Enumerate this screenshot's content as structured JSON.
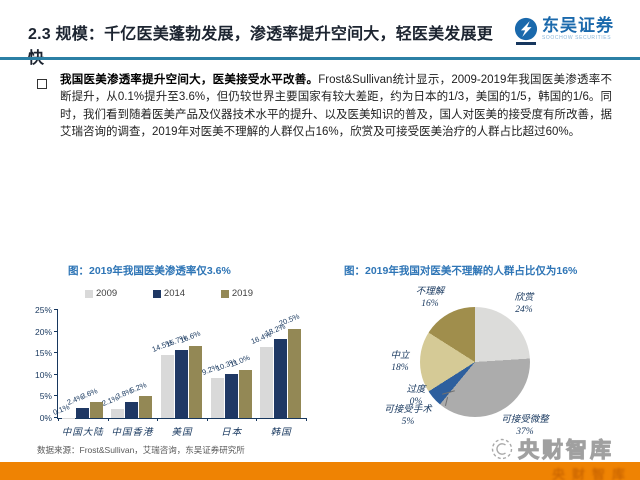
{
  "colors": {
    "accent_blue": "#2e75b6",
    "header_navy": "#1c2430",
    "divider_teal": "#2b80a5",
    "orange_bar": "#ef8303",
    "source_gray": "#595959"
  },
  "header": {
    "title": "2.3 规模：千亿医美蓬勃发展，渗透率提升空间大，轻医美发展更快",
    "brand_name": "东吴证券",
    "brand_sub": "SOOCHOW SECURITIES",
    "brand_icon": "soochow-circle-bolt"
  },
  "body": {
    "lead": "我国医美渗透率提升空间大，医美接受水平改善。",
    "text": "Frost&Sullivan统计显示，2009-2019年我国医美渗透率不断提升，从0.1%提升至3.6%，但仍较世界主要国家有较大差距，约为日本的1/3，美国的1/5，韩国的1/6。同时，我们看到随着医美产品及仪器技术水平的提升、以及医美知识的普及，国人对医美的接受度有所改善，据艾瑞咨询的调查，2019年对医美不理解的人群仅占16%，欣赏及可接受医美治疗的人群占比超过60%。"
  },
  "chart_data": [
    {
      "type": "bar",
      "title": "图：2019年我国医美渗透率仅3.6%",
      "categories": [
        "中国大陆",
        "中国香港",
        "美国",
        "日本",
        "韩国"
      ],
      "series": [
        {
          "name": "2009",
          "color": "#d9d9d9",
          "values": [
            0.1,
            2.1,
            14.5,
            9.2,
            16.4
          ],
          "labels": [
            "0.1%",
            "2.1%",
            "14.5%",
            "9.2%",
            "16.4%"
          ]
        },
        {
          "name": "2014",
          "color": "#1f3864",
          "values": [
            2.4,
            3.8,
            15.7,
            10.3,
            18.2
          ],
          "labels": [
            "2.4%",
            "3.8%",
            "15.7%",
            "10.3%",
            "18.2%"
          ]
        },
        {
          "name": "2019",
          "color": "#938855",
          "values": [
            3.6,
            5.2,
            16.6,
            11.0,
            20.5
          ],
          "labels": [
            "3.6%",
            "5.2%",
            "16.6%",
            "11.0%",
            "20.5%"
          ]
        }
      ],
      "xlabel": "",
      "ylabel": "",
      "ylim": [
        0,
        25
      ],
      "yticks": [
        "0%",
        "5%",
        "10%",
        "15%",
        "20%",
        "25%"
      ],
      "grid": false,
      "legend_position": "top"
    },
    {
      "type": "pie",
      "title": "图：2019年我国对医美不理解的人群占比仅为16%",
      "start_angle_deg": 0,
      "direction": "clockwise",
      "slices": [
        {
          "label": "欣赏",
          "value": 24,
          "pct": "24%",
          "color": "#dcdcda"
        },
        {
          "label": "可接受微整",
          "value": 37,
          "pct": "37%",
          "color": "#acacac"
        },
        {
          "label": "可接受手术",
          "value": 5,
          "pct": "5%",
          "color": "#2d5f9e"
        },
        {
          "label": "过度",
          "value": 0,
          "pct": "0%",
          "color": "#7f7f7f"
        },
        {
          "label": "中立",
          "value": 18,
          "pct": "18%",
          "color": "#d5ca96"
        },
        {
          "label": "不理解",
          "value": 16,
          "pct": "16%",
          "color": "#a08e4c"
        }
      ]
    }
  ],
  "footer": {
    "source": "数据来源：Frost&Sullivan，艾瑞咨询，东吴证券研究所",
    "watermark": "央财智库",
    "watermark_icon": "spiky-circle"
  }
}
